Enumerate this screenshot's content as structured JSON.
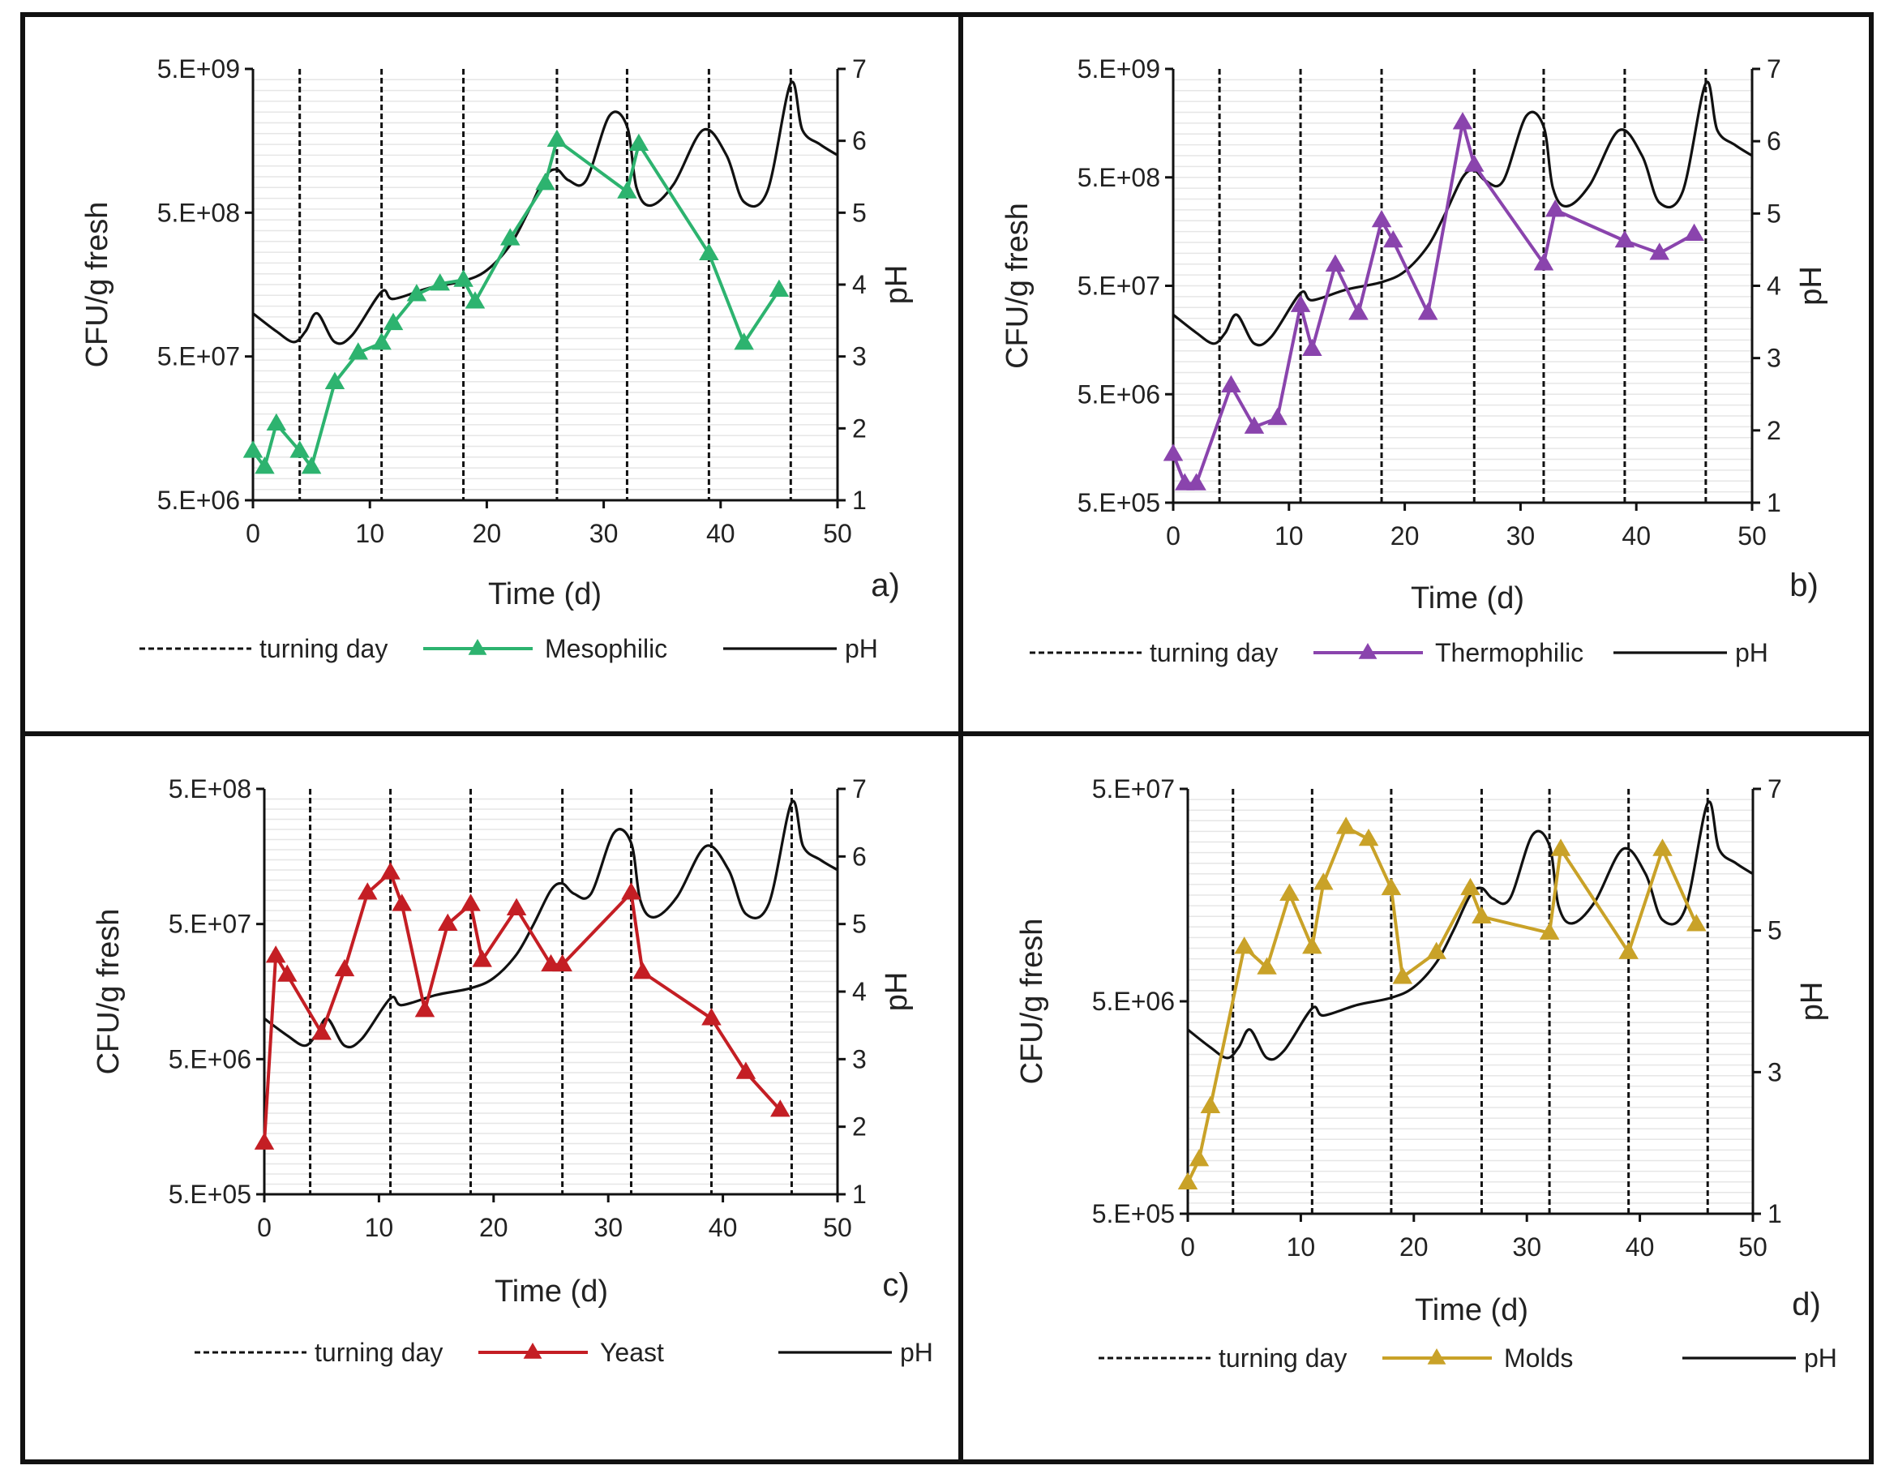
{
  "figure": {
    "legend_common": {
      "turning": "turning day",
      "ph": "pH"
    },
    "colors": {
      "mesophilic": "#2db36f",
      "thermophilic": "#8a44ad",
      "yeast": "#c41e24",
      "molds": "#c9a228",
      "ph": "#111111",
      "turning": "#111111"
    }
  },
  "chart_data": [
    {
      "type": "line",
      "panel_label": "a)",
      "xlabel": "Time (d)",
      "ylabel": "CFU/g  fresh",
      "y2label": "pH",
      "xlim": [
        0,
        50
      ],
      "xticks": [
        "0",
        "10",
        "20",
        "30",
        "40",
        "50"
      ],
      "ylim_log": [
        5000000,
        5000000000
      ],
      "yticks": [
        "5.E+06",
        "5.E+07",
        "5.E+08",
        "5.E+09"
      ],
      "y2lim": [
        1,
        7
      ],
      "y2ticks": [
        "1",
        "2",
        "3",
        "4",
        "5",
        "6",
        "7"
      ],
      "turning_days": [
        4,
        11,
        18,
        26,
        32,
        39,
        46
      ],
      "legend": [
        "turning day",
        "Mesophilic",
        "pH"
      ],
      "series": [
        {
          "name": "Mesophilic",
          "color": "#2db36f",
          "x": [
            0,
            1,
            2,
            4,
            5,
            7,
            9,
            11,
            12,
            14,
            16,
            18,
            19,
            22,
            25,
            26,
            32,
            33,
            39,
            42,
            45
          ],
          "y": [
            11000000.0,
            8500000.0,
            17000000.0,
            11000000.0,
            8500000.0,
            33000000.0,
            53000000.0,
            62000000.0,
            85000000.0,
            135000000.0,
            160000000.0,
            170000000.0,
            120000000.0,
            330000000.0,
            800000000.0,
            1600000000.0,
            700000000.0,
            1500000000.0,
            260000000.0,
            62000000.0,
            145000000.0
          ]
        },
        {
          "name": "pH",
          "color": "#111111",
          "x": [
            0,
            2,
            3.5,
            4.5,
            5.5,
            7,
            8.5,
            11,
            12,
            15,
            18,
            20,
            22,
            23.5,
            25,
            26,
            27,
            28.5,
            30.5,
            32,
            32.8,
            34,
            36,
            38.5,
            40.5,
            42,
            44,
            46,
            47,
            48.5,
            50
          ],
          "y": [
            3.6,
            3.35,
            3.2,
            3.35,
            3.6,
            3.2,
            3.3,
            3.9,
            3.8,
            3.95,
            4.05,
            4.2,
            4.55,
            5.0,
            5.5,
            5.6,
            5.45,
            5.45,
            6.35,
            6.2,
            5.35,
            5.1,
            5.4,
            6.15,
            5.8,
            5.15,
            5.3,
            6.8,
            6.15,
            5.95,
            5.8
          ]
        }
      ]
    },
    {
      "type": "line",
      "panel_label": "b)",
      "xlabel": "Time (d)",
      "ylabel": "CFU/g  fresh",
      "y2label": "pH",
      "xlim": [
        0,
        50
      ],
      "xticks": [
        "0",
        "10",
        "20",
        "30",
        "40",
        "50"
      ],
      "ylim_log": [
        500000,
        5000000000
      ],
      "yticks": [
        "5.E+05",
        "5.E+06",
        "5.E+07",
        "5.E+08",
        "5.E+09"
      ],
      "y2lim": [
        1,
        7
      ],
      "y2ticks": [
        "1",
        "2",
        "3",
        "4",
        "5",
        "6",
        "7"
      ],
      "turning_days": [
        4,
        11,
        18,
        26,
        32,
        39,
        46
      ],
      "legend": [
        "turning day",
        "Thermophilic",
        "pH"
      ],
      "series": [
        {
          "name": "Thermophilic",
          "color": "#8a44ad",
          "x": [
            0,
            1,
            2,
            5,
            7,
            9,
            11,
            12,
            14,
            16,
            18,
            19,
            22,
            25,
            26,
            32,
            33,
            39,
            42,
            45
          ],
          "y": [
            1400000.0,
            750000.0,
            750000.0,
            6000000.0,
            2500000.0,
            3000000.0,
            33000000.0,
            13000000.0,
            78000000.0,
            28000000.0,
            200000000.0,
            130000000.0,
            28000000.0,
            1600000000.0,
            650000000.0,
            80000000.0,
            250000000.0,
            130000000.0,
            100000000.0,
            150000000.0
          ]
        },
        {
          "name": "pH",
          "color": "#111111",
          "x": [
            0,
            2,
            3.5,
            4.5,
            5.5,
            7,
            8.5,
            11,
            12,
            15,
            18,
            20,
            22,
            23.5,
            25,
            26,
            27,
            28.5,
            30.5,
            32,
            32.8,
            34,
            36,
            38.5,
            40.5,
            42,
            44,
            46,
            47,
            48.5,
            50
          ],
          "y": [
            3.6,
            3.35,
            3.2,
            3.35,
            3.6,
            3.2,
            3.3,
            3.9,
            3.8,
            3.95,
            4.05,
            4.2,
            4.55,
            5.0,
            5.5,
            5.6,
            5.45,
            5.45,
            6.35,
            6.2,
            5.35,
            5.1,
            5.4,
            6.15,
            5.8,
            5.15,
            5.3,
            6.8,
            6.15,
            5.95,
            5.8
          ]
        }
      ]
    },
    {
      "type": "line",
      "panel_label": "c)",
      "xlabel": "Time (d)",
      "ylabel": "CFU/g  fresh",
      "y2label": "pH",
      "xlim": [
        0,
        50
      ],
      "xticks": [
        "0",
        "10",
        "20",
        "30",
        "40",
        "50"
      ],
      "ylim_log": [
        500000,
        500000000
      ],
      "yticks": [
        "5.E+05",
        "5.E+06",
        "5.E+07",
        "5.E+08"
      ],
      "y2lim": [
        1,
        7
      ],
      "y2ticks": [
        "1",
        "2",
        "3",
        "4",
        "5",
        "6",
        "7"
      ],
      "turning_days": [
        4,
        11,
        18,
        26,
        32,
        39,
        46
      ],
      "legend": [
        "turning day",
        "Yeast",
        "pH"
      ],
      "series": [
        {
          "name": "Yeast",
          "color": "#c41e24",
          "x": [
            0,
            1,
            2,
            5,
            7,
            9,
            11,
            12,
            14,
            16,
            18,
            19,
            22,
            25,
            26,
            32,
            33,
            39,
            42,
            45
          ],
          "y": [
            1200000.0,
            29000000.0,
            21000000.0,
            7800000.0,
            23000000.0,
            85000000.0,
            120000000.0,
            70000000.0,
            11500000.0,
            50000000.0,
            70000000.0,
            27000000.0,
            65000000.0,
            25000000.0,
            25000000.0,
            85000000.0,
            22000000.0,
            10000000.0,
            4000000.0,
            2100000.0
          ]
        },
        {
          "name": "pH",
          "color": "#111111",
          "x": [
            0,
            2,
            3.5,
            4.5,
            5.5,
            7,
            8.5,
            11,
            12,
            15,
            18,
            20,
            22,
            23.5,
            25,
            26,
            27,
            28.5,
            30.5,
            32,
            32.8,
            34,
            36,
            38.5,
            40.5,
            42,
            44,
            46,
            47,
            48.5,
            50
          ],
          "y": [
            3.6,
            3.35,
            3.2,
            3.35,
            3.6,
            3.2,
            3.3,
            3.9,
            3.8,
            3.95,
            4.05,
            4.2,
            4.55,
            5.0,
            5.5,
            5.6,
            5.45,
            5.45,
            6.35,
            6.2,
            5.35,
            5.1,
            5.4,
            6.15,
            5.8,
            5.15,
            5.3,
            6.8,
            6.15,
            5.95,
            5.8
          ]
        }
      ]
    },
    {
      "type": "line",
      "panel_label": "d)",
      "xlabel": "Time (d)",
      "ylabel": "CFU/g  fresh",
      "y2label": "pH",
      "xlim": [
        0,
        50
      ],
      "xticks": [
        "0",
        "10",
        "20",
        "30",
        "40",
        "50"
      ],
      "ylim_log": [
        500000,
        50000000
      ],
      "yticks": [
        "5.E+05",
        "5.E+06",
        "5.E+07"
      ],
      "y2lim": [
        1,
        7
      ],
      "y2ticks": [
        "1",
        "3",
        "5",
        "7"
      ],
      "turning_days": [
        4,
        11,
        18,
        26,
        32,
        39,
        46
      ],
      "legend": [
        "turning day",
        "Molds",
        "pH"
      ],
      "series": [
        {
          "name": "Molds",
          "color": "#c9a228",
          "x": [
            0,
            1,
            2,
            5,
            7,
            9,
            11,
            12,
            14,
            16,
            18,
            19,
            22,
            25,
            26,
            32,
            33,
            39,
            42,
            45
          ],
          "y": [
            700000.0,
            900000.0,
            1600000.0,
            9000000.0,
            7200000.0,
            16000000.0,
            9000000.0,
            18000000.0,
            33000000.0,
            29000000.0,
            17000000.0,
            6500000.0,
            8500000.0,
            17000000.0,
            12500000.0,
            10500000.0,
            26000000.0,
            8500000.0,
            26000000.0,
            11500000.0
          ]
        },
        {
          "name": "pH",
          "color": "#111111",
          "x": [
            0,
            2,
            3.5,
            4.5,
            5.5,
            7,
            8.5,
            11,
            12,
            15,
            18,
            20,
            22,
            23.5,
            25,
            26,
            27,
            28.5,
            30.5,
            32,
            32.8,
            34,
            36,
            38.5,
            40.5,
            42,
            44,
            46,
            47,
            48.5,
            50
          ],
          "y": [
            3.6,
            3.35,
            3.2,
            3.35,
            3.6,
            3.2,
            3.3,
            3.9,
            3.8,
            3.95,
            4.05,
            4.2,
            4.55,
            5.0,
            5.5,
            5.6,
            5.45,
            5.45,
            6.35,
            6.2,
            5.35,
            5.1,
            5.4,
            6.15,
            5.8,
            5.15,
            5.3,
            6.8,
            6.15,
            5.95,
            5.8
          ]
        }
      ]
    }
  ]
}
